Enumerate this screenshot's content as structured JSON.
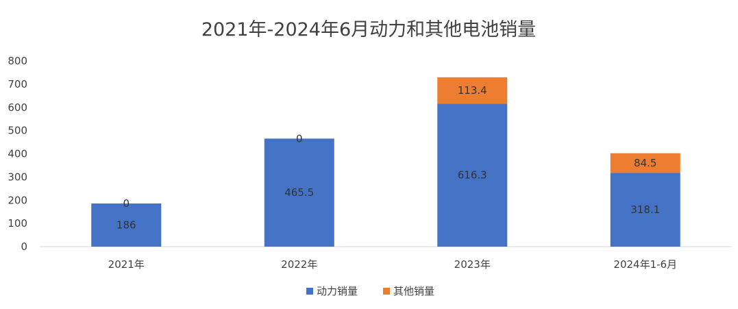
{
  "chart_data": {
    "type": "bar",
    "stacked": true,
    "title": "2021年-2024年6月动力和其他电池销量",
    "xlabel": "",
    "ylabel": "",
    "categories": [
      "2021年",
      "2022年",
      "2023年",
      "2024年1-6月"
    ],
    "series": [
      {
        "name": "动力销量",
        "values": [
          186,
          465.5,
          616.3,
          318.1
        ],
        "labels": [
          "186",
          "465.5",
          "616.3",
          "318.1"
        ],
        "color": "#4472C4"
      },
      {
        "name": "其他销量",
        "values": [
          0,
          0,
          113.4,
          84.5
        ],
        "labels": [
          "0",
          "0",
          "113.4",
          "84.5"
        ],
        "color": "#ED7D31"
      }
    ],
    "ylim": [
      0,
      800
    ],
    "yticks": [
      0,
      100,
      200,
      300,
      400,
      500,
      600,
      700,
      800
    ],
    "grid": false,
    "legend_position": "bottom"
  }
}
